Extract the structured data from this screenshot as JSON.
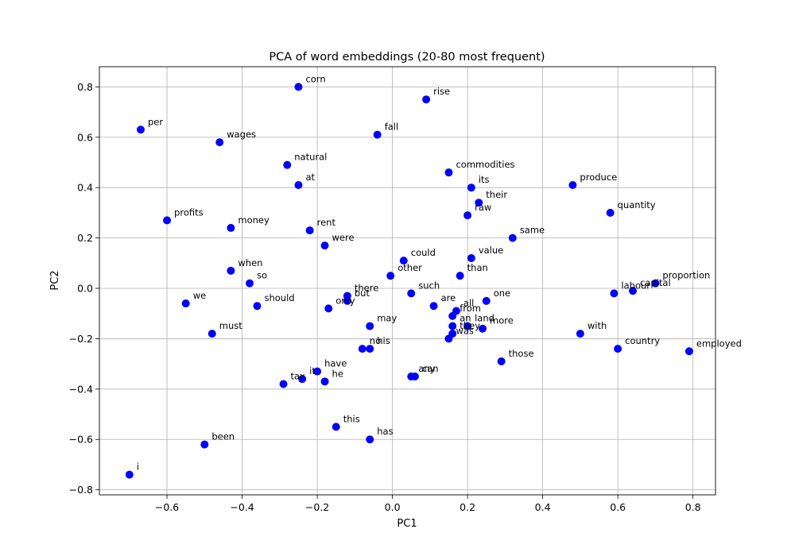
{
  "chart_data": {
    "type": "scatter",
    "title": "PCA of word embeddings (20-80 most frequent)",
    "xlabel": "PC1",
    "ylabel": "PC2",
    "xlim": [
      -0.78,
      0.86
    ],
    "ylim": [
      -0.82,
      0.88
    ],
    "xticks": [
      -0.6,
      -0.4,
      -0.2,
      0.0,
      0.2,
      0.4,
      0.6,
      0.8
    ],
    "yticks": [
      -0.8,
      -0.6,
      -0.4,
      -0.2,
      0.0,
      0.2,
      0.4,
      0.6,
      0.8
    ],
    "tick_label_text": {
      "x": [
        "−0.6",
        "−0.4",
        "−0.2",
        "0.0",
        "0.2",
        "0.4",
        "0.6",
        "0.8"
      ],
      "y": [
        "−0.8",
        "−0.6",
        "−0.4",
        "−0.2",
        "0.0",
        "0.2",
        "0.4",
        "0.6",
        "0.8"
      ]
    },
    "grid": true,
    "marker_color": "#0000ff",
    "points": [
      {
        "label": "corn",
        "x": -0.25,
        "y": 0.8
      },
      {
        "label": "rise",
        "x": 0.09,
        "y": 0.75
      },
      {
        "label": "per",
        "x": -0.67,
        "y": 0.63
      },
      {
        "label": "fall",
        "x": -0.04,
        "y": 0.61
      },
      {
        "label": "wages",
        "x": -0.46,
        "y": 0.58
      },
      {
        "label": "natural",
        "x": -0.28,
        "y": 0.49
      },
      {
        "label": "commodities",
        "x": 0.15,
        "y": 0.46
      },
      {
        "label": "at",
        "x": -0.25,
        "y": 0.41
      },
      {
        "label": "its",
        "x": 0.21,
        "y": 0.4
      },
      {
        "label": "produce",
        "x": 0.48,
        "y": 0.41
      },
      {
        "label": "their",
        "x": 0.23,
        "y": 0.34
      },
      {
        "label": "raw",
        "x": 0.2,
        "y": 0.29
      },
      {
        "label": "quantity",
        "x": 0.58,
        "y": 0.3
      },
      {
        "label": "profits",
        "x": -0.6,
        "y": 0.27
      },
      {
        "label": "money",
        "x": -0.43,
        "y": 0.24
      },
      {
        "label": "rent",
        "x": -0.22,
        "y": 0.23
      },
      {
        "label": "same",
        "x": 0.32,
        "y": 0.2
      },
      {
        "label": "were",
        "x": -0.18,
        "y": 0.17
      },
      {
        "label": "could",
        "x": 0.03,
        "y": 0.11
      },
      {
        "label": "value",
        "x": 0.21,
        "y": 0.12
      },
      {
        "label": "when",
        "x": -0.43,
        "y": 0.07
      },
      {
        "label": "other",
        "x": -0.005,
        "y": 0.05
      },
      {
        "label": "than",
        "x": 0.18,
        "y": 0.05
      },
      {
        "label": "so",
        "x": -0.38,
        "y": 0.02
      },
      {
        "label": "proportion",
        "x": 0.7,
        "y": 0.02
      },
      {
        "label": "capital",
        "x": 0.64,
        "y": -0.01
      },
      {
        "label": "labour",
        "x": 0.59,
        "y": -0.02
      },
      {
        "label": "such",
        "x": 0.05,
        "y": -0.02
      },
      {
        "label": "there",
        "x": -0.12,
        "y": -0.03
      },
      {
        "label": "but",
        "x": -0.12,
        "y": -0.05
      },
      {
        "label": "one",
        "x": 0.25,
        "y": -0.05
      },
      {
        "label": "we",
        "x": -0.55,
        "y": -0.06
      },
      {
        "label": "should",
        "x": -0.36,
        "y": -0.07
      },
      {
        "label": "are",
        "x": 0.11,
        "y": -0.07
      },
      {
        "label": "only",
        "x": -0.17,
        "y": -0.08
      },
      {
        "label": "all",
        "x": 0.17,
        "y": -0.09
      },
      {
        "label": "from",
        "x": 0.16,
        "y": -0.11
      },
      {
        "label": "an",
        "x": 0.16,
        "y": -0.15
      },
      {
        "label": "may",
        "x": -0.06,
        "y": -0.15
      },
      {
        "label": "land",
        "x": 0.2,
        "y": -0.15
      },
      {
        "label": "more",
        "x": 0.24,
        "y": -0.16
      },
      {
        "label": "must",
        "x": -0.48,
        "y": -0.18
      },
      {
        "label": "with",
        "x": 0.5,
        "y": -0.18
      },
      {
        "label": "they",
        "x": 0.16,
        "y": -0.18
      },
      {
        "label": "was",
        "x": 0.15,
        "y": -0.2
      },
      {
        "label": "country",
        "x": 0.6,
        "y": -0.24
      },
      {
        "label": "no",
        "x": -0.08,
        "y": -0.24
      },
      {
        "label": "his",
        "x": -0.06,
        "y": -0.24
      },
      {
        "label": "employed",
        "x": 0.79,
        "y": -0.25
      },
      {
        "label": "those",
        "x": 0.29,
        "y": -0.29
      },
      {
        "label": "have",
        "x": -0.2,
        "y": -0.33
      },
      {
        "label": "any",
        "x": 0.05,
        "y": -0.35
      },
      {
        "label": "can",
        "x": 0.06,
        "y": -0.35
      },
      {
        "label": "it",
        "x": -0.24,
        "y": -0.36
      },
      {
        "label": "he",
        "x": -0.18,
        "y": -0.37
      },
      {
        "label": "tax",
        "x": -0.29,
        "y": -0.38
      },
      {
        "label": "this",
        "x": -0.15,
        "y": -0.55
      },
      {
        "label": "has",
        "x": -0.06,
        "y": -0.6
      },
      {
        "label": "been",
        "x": -0.5,
        "y": -0.62
      },
      {
        "label": "i",
        "x": -0.7,
        "y": -0.74
      }
    ]
  }
}
